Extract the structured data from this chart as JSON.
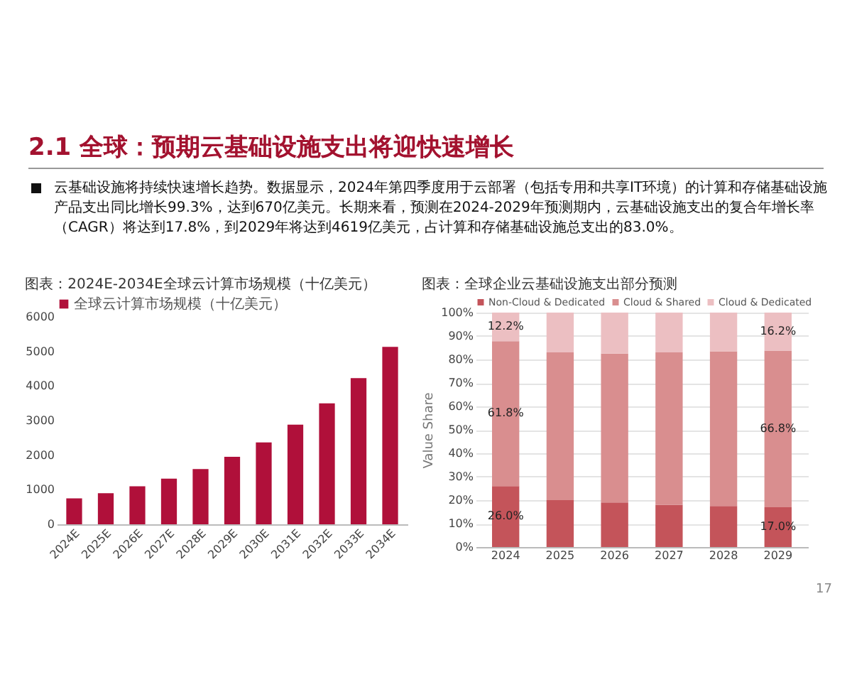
{
  "chart_data": [
    {
      "type": "bar",
      "title": "图表：2024E-2034E全球云计算市场规模（十亿美元）",
      "categories": [
        "2024E",
        "2025E",
        "2026E",
        "2027E",
        "2028E",
        "2029E",
        "2030E",
        "2031E",
        "2032E",
        "2033E",
        "2034E"
      ],
      "series": [
        {
          "name": "全球云计算市场规模（十亿美元）",
          "color": "#b0103a",
          "values": [
            750,
            900,
            1100,
            1320,
            1600,
            1950,
            2370,
            2880,
            3500,
            4230,
            5130
          ]
        }
      ],
      "ylim": [
        0,
        6000
      ],
      "yticks": [
        0,
        1000,
        2000,
        3000,
        4000,
        5000,
        6000
      ],
      "legend": "top",
      "annotations": [
        "2.1 全球：预期云基础设施支出将迎快速增长",
        "云基础设施将持续快速增长趋势。数据显示，2024年第四季度用于云部署（包括专用和共享IT环境）的计算和存储基础设施产品支出同比增长99.3%，达到670亿美元。长期来看，预测在2024-2029年预测期内，云基础设施支出的复合年增长率（CAGR）将达到17.8%，到2029年将达到4619亿美元，占计算和存储基础设施总支出的83.0%。"
      ]
    },
    {
      "type": "bar",
      "stacked": true,
      "title": "图表：全球企业云基础设施支出部分预测",
      "ylabel": "Value Share",
      "categories": [
        "2024",
        "2025",
        "2026",
        "2027",
        "2028",
        "2029"
      ],
      "series": [
        {
          "name": "Non-Cloud & Dedicated",
          "color": "#c4545a",
          "values": [
            26.0,
            20,
            19,
            18,
            17.5,
            17.0
          ],
          "value_labels": [
            "26.0%",
            null,
            null,
            null,
            null,
            "17.0%"
          ]
        },
        {
          "name": "Cloud & Shared",
          "color": "#d98e8f",
          "values": [
            61.8,
            63,
            63.5,
            65,
            66,
            66.8
          ],
          "value_labels": [
            "61.8%",
            null,
            null,
            null,
            null,
            "66.8%"
          ]
        },
        {
          "name": "Cloud & Dedicated",
          "color": "#ecbfc2",
          "values": [
            12.2,
            17,
            17.5,
            17,
            16.5,
            16.2
          ],
          "value_labels": [
            "12.2%",
            null,
            null,
            null,
            null,
            "16.2%"
          ]
        }
      ],
      "ylim": [
        0,
        100
      ],
      "yticks": [
        {
          "value": 0,
          "label": "0%"
        },
        {
          "value": 10,
          "label": "10%"
        },
        {
          "value": 20,
          "label": "20%"
        },
        {
          "value": 30,
          "label": "30%"
        },
        {
          "value": 40,
          "label": "40%"
        },
        {
          "value": 50,
          "label": "50%"
        },
        {
          "value": 60,
          "label": "60%"
        },
        {
          "value": 70,
          "label": "70%"
        },
        {
          "value": 80,
          "label": "80%"
        },
        {
          "value": 90,
          "label": "90%"
        },
        {
          "value": 100,
          "label": "100%"
        }
      ],
      "grid": "y",
      "legend": "top",
      "annotations": [
        "17"
      ]
    }
  ]
}
